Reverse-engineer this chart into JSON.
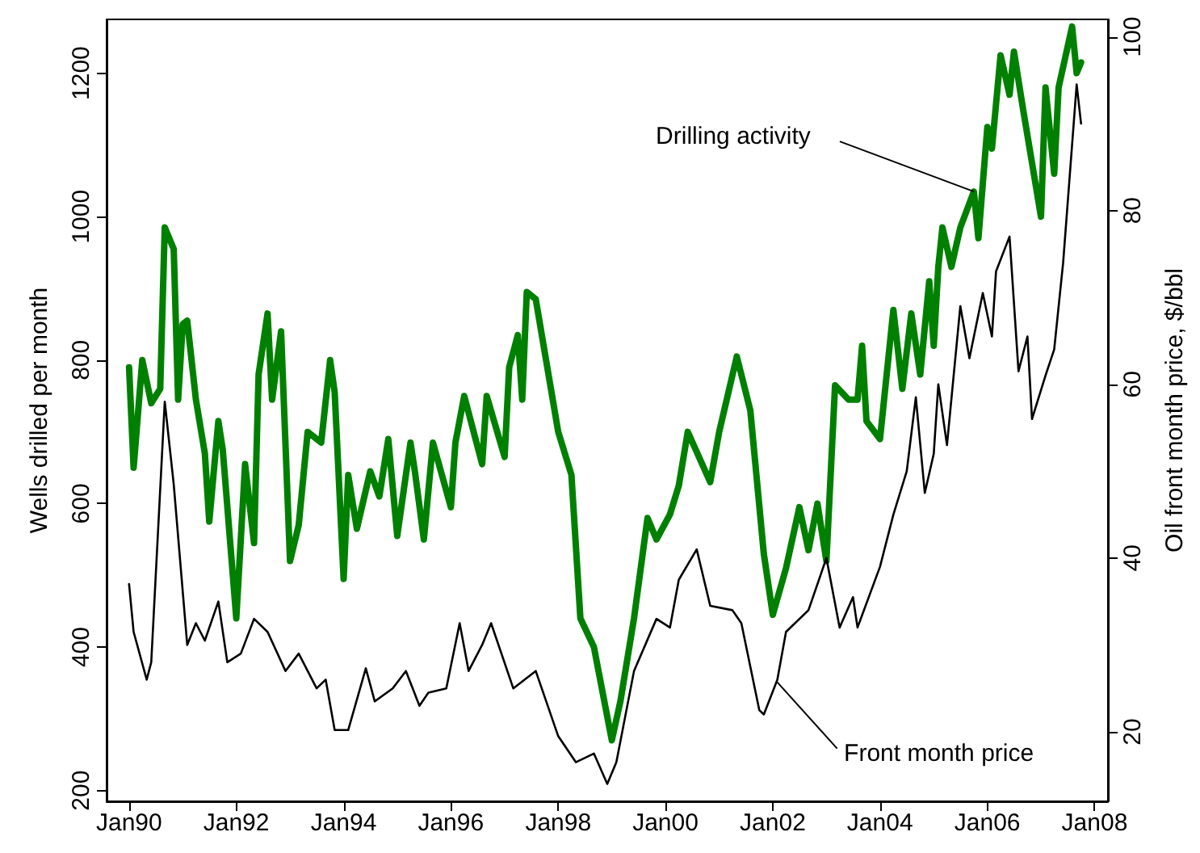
{
  "chart_data": {
    "type": "line",
    "ylabel": "Wells drilled per month",
    "y2label": "Oil front month price, $/bbl",
    "xlim": [
      "1989-08",
      "2008-04"
    ],
    "xticks": [
      {
        "value": "1990-01",
        "label": "Jan90"
      },
      {
        "value": "1992-01",
        "label": "Jan92"
      },
      {
        "value": "1994-01",
        "label": "Jan94"
      },
      {
        "value": "1996-01",
        "label": "Jan96"
      },
      {
        "value": "1998-01",
        "label": "Jan98"
      },
      {
        "value": "2000-01",
        "label": "Jan00"
      },
      {
        "value": "2002-01",
        "label": "Jan02"
      },
      {
        "value": "2004-01",
        "label": "Jan04"
      },
      {
        "value": "2006-01",
        "label": "Jan06"
      },
      {
        "value": "2008-01",
        "label": "Jan08"
      }
    ],
    "ylim": [
      185,
      1275
    ],
    "yticks": [
      200,
      400,
      600,
      800,
      1000,
      1200
    ],
    "y2lim": [
      12,
      102
    ],
    "y2ticks": [
      20,
      40,
      60,
      80,
      100
    ],
    "line_style": "solid",
    "annotations": [
      {
        "text": "Drilling activity",
        "x": "2005-10",
        "y": 1035
      },
      {
        "text": "Front month price",
        "x": "2002-02",
        "y": 351
      }
    ],
    "series": [
      {
        "color": "#008000",
        "x": [
          "1990-01",
          "1990-02",
          "1990-04",
          "1990-06",
          "1990-08",
          "1990-09",
          "1990-11",
          "1990-12",
          "1991-01",
          "1991-02",
          "1991-04",
          "1991-06",
          "1991-07",
          "1991-09",
          "1991-10",
          "1992-01",
          "1992-03",
          "1992-05",
          "1992-06",
          "1992-08",
          "1992-09",
          "1992-11",
          "1993-01",
          "1993-03",
          "1993-05",
          "1993-08",
          "1993-10",
          "1993-11",
          "1994-01",
          "1994-02",
          "1994-04",
          "1994-07",
          "1994-09",
          "1994-11",
          "1995-01",
          "1995-04",
          "1995-05",
          "1995-07",
          "1995-09",
          "1996-01",
          "1996-02",
          "1996-04",
          "1996-08",
          "1996-09",
          "1997-01",
          "1997-02",
          "1997-04",
          "1997-05",
          "1997-06",
          "1997-08",
          "1998-01",
          "1998-04",
          "1998-06",
          "1998-09",
          "1999-01",
          "1999-03",
          "1999-06",
          "1999-09",
          "1999-11",
          "2000-02",
          "2000-04",
          "2000-06",
          "2000-11",
          "2001-01",
          "2001-05",
          "2001-08",
          "2001-11",
          "2002-01",
          "2002-04",
          "2002-07",
          "2002-09",
          "2002-11",
          "2003-01",
          "2003-03",
          "2003-06",
          "2003-08",
          "2003-09",
          "2003-10",
          "2004-01",
          "2004-04",
          "2004-06",
          "2004-08",
          "2004-10",
          "2004-12",
          "2005-01",
          "2005-02",
          "2005-03",
          "2005-05",
          "2005-07",
          "2005-10",
          "2005-11",
          "2006-01",
          "2006-02",
          "2006-04",
          "2006-06",
          "2006-07",
          "2006-09",
          "2007-01",
          "2007-02",
          "2007-04",
          "2007-05",
          "2007-08",
          "2007-09",
          "2007-10"
        ],
        "values": [
          790,
          650,
          800,
          740,
          760,
          985,
          955,
          745,
          850,
          855,
          745,
          670,
          575,
          715,
          675,
          440,
          655,
          545,
          780,
          865,
          745,
          840,
          520,
          570,
          700,
          685,
          800,
          755,
          495,
          640,
          565,
          645,
          610,
          690,
          555,
          685,
          645,
          550,
          685,
          595,
          685,
          750,
          655,
          750,
          665,
          790,
          835,
          745,
          895,
          885,
          700,
          640,
          440,
          400,
          270,
          325,
          440,
          580,
          550,
          585,
          625,
          700,
          630,
          700,
          805,
          730,
          530,
          445,
          510,
          595,
          535,
          600,
          520,
          765,
          745,
          745,
          820,
          715,
          690,
          870,
          760,
          865,
          780,
          910,
          820,
          930,
          985,
          930,
          985,
          1035,
          970,
          1125,
          1095,
          1225,
          1170,
          1230,
          1150,
          1000,
          1180,
          1060,
          1180,
          1265,
          1200,
          1215
        ]
      },
      {
        "color": "#000000",
        "axis": "y2",
        "x": [
          "1990-01",
          "1990-02",
          "1990-05",
          "1990-06",
          "1990-09",
          "1990-11",
          "1991-02",
          "1991-04",
          "1991-06",
          "1991-09",
          "1991-11",
          "1992-02",
          "1992-05",
          "1992-08",
          "1992-12",
          "1993-03",
          "1993-07",
          "1993-09",
          "1993-11",
          "1994-02",
          "1994-06",
          "1994-08",
          "1994-12",
          "1995-03",
          "1995-06",
          "1995-08",
          "1995-12",
          "1996-03",
          "1996-05",
          "1996-08",
          "1996-10",
          "1997-03",
          "1997-08",
          "1998-01",
          "1998-05",
          "1998-09",
          "1998-12",
          "1999-02",
          "1999-06",
          "1999-11",
          "2000-02",
          "2000-04",
          "2000-08",
          "2000-11",
          "2001-04",
          "2001-06",
          "2001-10",
          "2001-11",
          "2002-02",
          "2002-04",
          "2002-09",
          "2003-01",
          "2003-04",
          "2003-07",
          "2003-08",
          "2004-01",
          "2004-04",
          "2004-07",
          "2004-09",
          "2004-11",
          "2005-01",
          "2005-02",
          "2005-04",
          "2005-07",
          "2005-09",
          "2005-12",
          "2006-02",
          "2006-03",
          "2006-06",
          "2006-08",
          "2006-10",
          "2006-11",
          "2007-02",
          "2007-04",
          "2007-06",
          "2007-09",
          "2007-10"
        ],
        "values": [
          37,
          31.5,
          26,
          28,
          58,
          48.5,
          30,
          32.5,
          30.5,
          35,
          28,
          29,
          33,
          31.5,
          27,
          29,
          25,
          26,
          20.2,
          20.2,
          27.3,
          23.5,
          25,
          27,
          23,
          24.5,
          25,
          32.5,
          27,
          30,
          32.5,
          25,
          27,
          19.5,
          16.5,
          17.5,
          14,
          16.5,
          27,
          33,
          32,
          37.5,
          41,
          34.5,
          34,
          32.5,
          22.5,
          22,
          26,
          31.5,
          34,
          40,
          32,
          35.5,
          32,
          39,
          45,
          50,
          58.5,
          47.5,
          52,
          60,
          53,
          69,
          63,
          70.5,
          65.5,
          73,
          77,
          61.5,
          65.5,
          56,
          61,
          64,
          74,
          94.5,
          90
        ]
      }
    ]
  }
}
